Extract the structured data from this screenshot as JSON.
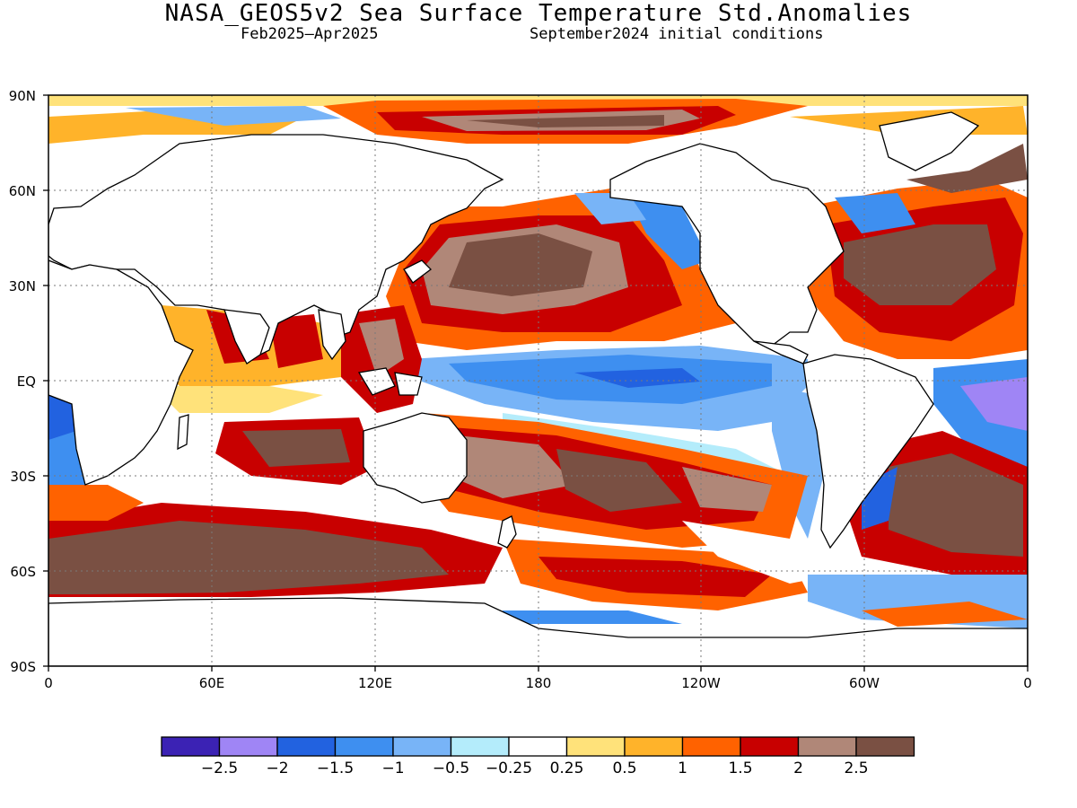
{
  "title": "NASA_GEOS5v2 Sea Surface Temperature Std.Anomalies",
  "subtitle_left": "Feb2025–Apr2025",
  "subtitle_right": "September2024 initial conditions",
  "lat_labels": [
    "90N",
    "60N",
    "30N",
    "EQ",
    "30S",
    "60S",
    "90S"
  ],
  "lon_labels": [
    "0",
    "60E",
    "120E",
    "180",
    "120W",
    "60W",
    "0"
  ],
  "colorbar": {
    "colors": [
      "#3b22b4",
      "#9f85f5",
      "#2262e0",
      "#3e8ff0",
      "#78b4f7",
      "#b4ecfb",
      "#ffffff",
      "#ffe27a",
      "#ffb32a",
      "#ff6200",
      "#c80000",
      "#b08778",
      "#7a5043"
    ],
    "tick_labels": [
      "−2.5",
      "−2",
      "−1.5",
      "−1",
      "−0.5",
      "−0.25",
      "0.25",
      "0.5",
      "1",
      "1.5",
      "2",
      "2.5"
    ]
  }
}
